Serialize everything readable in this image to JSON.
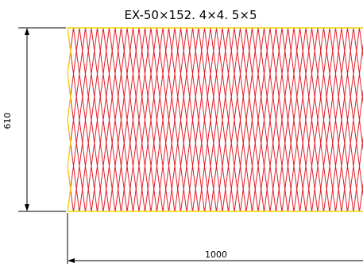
{
  "title": "EX-50×152. 4×4. 5×5",
  "dimensions": {
    "height_label": "610",
    "width_label": "1000"
  },
  "colors": {
    "mesh_line": "#e0202a",
    "frame_line": "#f2d400",
    "dimension_line": "#000000",
    "background": "#ffffff"
  }
}
